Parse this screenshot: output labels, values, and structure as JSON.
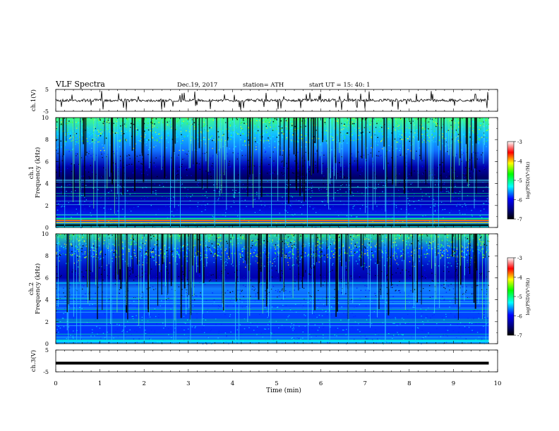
{
  "header": {
    "title": "VLF  Spectra",
    "date": "Dec.19, 2017",
    "station": "station= ATH",
    "start": "start  UT  =    15: 40: 1"
  },
  "chart_data": [
    {
      "id": "ch1-waveform",
      "type": "line",
      "ylabel": "ch.1(V)",
      "ylim": [
        -5,
        5
      ],
      "yticks": [
        "5",
        "-5"
      ],
      "x_range_min": [
        0,
        9.8
      ],
      "baseline": 0,
      "trace_color": "#000000"
    },
    {
      "id": "ch1-spectrogram",
      "type": "heatmap",
      "ylabel": [
        "ch.1",
        "Frequency  (kHz)"
      ],
      "ylim": [
        0,
        10
      ],
      "yticks": [
        "0",
        "2",
        "4",
        "6",
        "8",
        "10"
      ],
      "x_range_min": [
        0,
        9.8
      ],
      "colorbar": {
        "label": "log(PSD)(V²/Hz)",
        "range": [
          -7,
          -3
        ],
        "ticks": [
          "-3",
          "-4",
          "-5",
          "-6",
          "-7"
        ],
        "colors": [
          "#000000",
          "#0000ff",
          "#00ffff",
          "#00ff00",
          "#ffff00",
          "#ff0000",
          "#ffffff"
        ]
      }
    },
    {
      "id": "ch2-spectrogram",
      "type": "heatmap",
      "ylabel": [
        "ch.2",
        "Frequency  (kHz)"
      ],
      "ylim": [
        0,
        10
      ],
      "yticks": [
        "0",
        "2",
        "4",
        "6",
        "8",
        "10"
      ],
      "x_range_min": [
        0,
        9.8
      ],
      "colorbar": {
        "label": "log(PSD)(V²/Hz)",
        "range": [
          -7,
          -3
        ],
        "ticks": [
          "-3",
          "-4",
          "-5",
          "-6",
          "-7"
        ],
        "colors": [
          "#000000",
          "#0000ff",
          "#00ffff",
          "#00ff00",
          "#ffff00",
          "#ff0000",
          "#ffffff"
        ]
      }
    },
    {
      "id": "ch3-waveform",
      "type": "line",
      "ylabel": "ch.3(V)",
      "ylim": [
        -5,
        5
      ],
      "yticks": [
        "5",
        "-5"
      ],
      "x_range_min": [
        0,
        9.8
      ],
      "baseline": -1,
      "trace_color": "#000000"
    }
  ],
  "xaxis": {
    "label": "Time  (min)",
    "range": [
      0,
      10
    ],
    "ticks": [
      "0",
      "1",
      "2",
      "3",
      "4",
      "5",
      "6",
      "7",
      "8",
      "9",
      "10"
    ]
  }
}
